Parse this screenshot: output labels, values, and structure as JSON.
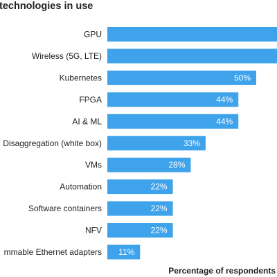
{
  "chart_data": {
    "type": "bar",
    "orientation": "horizontal",
    "title": "technologies in use",
    "xlabel": "Percentage of respondents",
    "ylabel": "",
    "categories": [
      "GPU",
      "Wireless (5G, LTE)",
      "Kubernetes",
      "FPGA",
      "AI & ML",
      "Disaggregation (white box)",
      "VMs",
      "Automation",
      "Software containers",
      "NFV",
      "mmable Ethernet adapters"
    ],
    "values": [
      60,
      60,
      50,
      44,
      44,
      33,
      28,
      22,
      22,
      22,
      11
    ],
    "value_labels": [
      "",
      "",
      "50%",
      "44%",
      "44%",
      "33%",
      "28%",
      "22%",
      "22%",
      "22%",
      "11%"
    ],
    "xlim": [
      0,
      60
    ],
    "bar_color": "#3fa3ec",
    "grid": false,
    "legend": "none"
  }
}
